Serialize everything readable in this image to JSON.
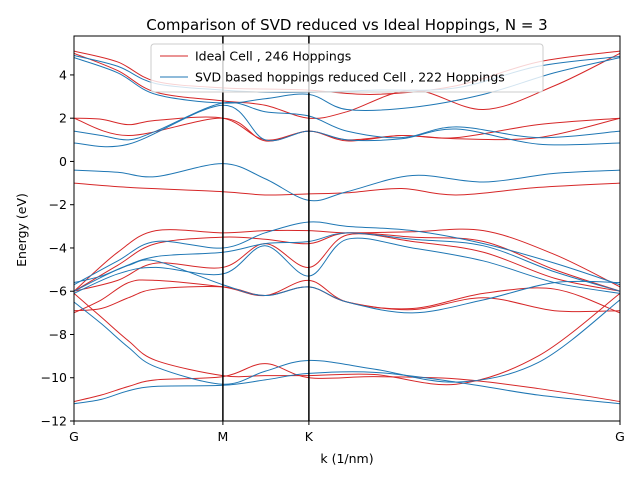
{
  "chart_data": {
    "type": "line",
    "title": "Comparison of SVD reduced vs Ideal Hoppings, N = 3",
    "xlabel": "k (1/nm)",
    "ylabel": "Energy (eV)",
    "xlim": [
      0,
      1
    ],
    "ylim": [
      -12,
      5.8
    ],
    "x_ticks": [
      {
        "x": 0.0,
        "label": "G"
      },
      {
        "x": 0.2727,
        "label": "M"
      },
      {
        "x": 0.4302,
        "label": "K"
      },
      {
        "x": 1.0,
        "label": "G"
      }
    ],
    "y_ticks": [
      -12,
      -10,
      -8,
      -6,
      -4,
      -2,
      0,
      2,
      4
    ],
    "high_symmetry_lines": [
      0.2727,
      0.4302
    ],
    "legend_position": "upper center",
    "series": [
      {
        "name": "Ideal Cell , 246 Hoppings",
        "color": "#d62728",
        "bands": [
          {
            "x": [
              0,
              0.08,
              0.15,
              0.2727,
              0.35,
              0.4302,
              0.55,
              0.7,
              0.85,
              1.0
            ],
            "y": [
              5.1,
              4.6,
              3.7,
              3.4,
              3.35,
              3.3,
              3.1,
              3.5,
              4.6,
              5.1
            ]
          },
          {
            "x": [
              0,
              0.08,
              0.15,
              0.2727,
              0.35,
              0.4302,
              0.5,
              0.62,
              0.75,
              0.88,
              1.0
            ],
            "y": [
              5.0,
              4.2,
              3.2,
              2.8,
              2.6,
              2.0,
              2.3,
              3.3,
              2.4,
              3.5,
              5.0
            ]
          },
          {
            "x": [
              0,
              0.05,
              0.1,
              0.15,
              0.2727,
              0.35,
              0.4302,
              0.5,
              0.6,
              0.7,
              0.85,
              1.0
            ],
            "y": [
              2.0,
              1.95,
              1.7,
              1.9,
              2.0,
              1.0,
              1.4,
              1.0,
              1.2,
              1.1,
              1.7,
              2.0
            ]
          },
          {
            "x": [
              0,
              0.1,
              0.2727,
              0.35,
              0.4302,
              0.5,
              0.6,
              0.7,
              0.85,
              1.0
            ],
            "y": [
              2.0,
              1.2,
              2.0,
              0.95,
              1.4,
              0.95,
              1.2,
              1.05,
              1.1,
              2.0
            ]
          },
          {
            "x": [
              0,
              0.1,
              0.2727,
              0.35,
              0.4302,
              0.5,
              0.6,
              0.7,
              0.85,
              1.0
            ],
            "y": [
              -1.0,
              -1.2,
              -1.4,
              -1.55,
              -1.5,
              -1.45,
              -1.25,
              -1.55,
              -1.2,
              -1.0
            ]
          },
          {
            "x": [
              0,
              0.08,
              0.15,
              0.2727,
              0.35,
              0.4302,
              0.5,
              0.62,
              0.75,
              0.88,
              1.0
            ],
            "y": [
              -6.0,
              -4.2,
              -3.2,
              -3.3,
              -3.2,
              -3.2,
              -3.3,
              -3.25,
              -3.2,
              -4.3,
              -5.8
            ]
          },
          {
            "x": [
              0,
              0.08,
              0.15,
              0.2727,
              0.35,
              0.4302,
              0.5,
              0.62,
              0.75,
              0.88,
              1.0
            ],
            "y": [
              -6.0,
              -4.8,
              -3.8,
              -3.5,
              -3.6,
              -3.8,
              -3.3,
              -3.5,
              -3.7,
              -5.0,
              -6.0
            ]
          },
          {
            "x": [
              0,
              0.08,
              0.15,
              0.2727,
              0.35,
              0.4302,
              0.5,
              0.62,
              0.75,
              0.88,
              1.0
            ],
            "y": [
              -6.0,
              -5.5,
              -4.7,
              -4.9,
              -3.8,
              -4.9,
              -3.4,
              -3.7,
              -4.2,
              -5.4,
              -6.0
            ]
          },
          {
            "x": [
              0,
              0.05,
              0.1,
              0.15,
              0.2727,
              0.35,
              0.4302,
              0.5,
              0.62,
              0.75,
              0.88,
              1.0
            ],
            "y": [
              -7.0,
              -6.4,
              -5.6,
              -5.5,
              -5.8,
              -6.2,
              -5.5,
              -6.5,
              -6.8,
              -6.1,
              -5.9,
              -7.0
            ]
          },
          {
            "x": [
              0,
              0.05,
              0.1,
              0.15,
              0.2727,
              0.35,
              0.4302,
              0.5,
              0.62,
              0.75,
              0.88,
              1.0
            ],
            "y": [
              -6.9,
              -6.8,
              -6.3,
              -5.9,
              -5.8,
              -6.2,
              -5.8,
              -6.5,
              -6.85,
              -6.3,
              -6.9,
              -6.9
            ]
          },
          {
            "x": [
              0,
              0.05,
              0.1,
              0.15,
              0.2727,
              0.35,
              0.4302,
              0.55,
              0.7,
              0.85,
              1.0
            ],
            "y": [
              -6.1,
              -7.2,
              -8.3,
              -9.2,
              -9.9,
              -9.9,
              -9.9,
              -9.85,
              -10.3,
              -9.0,
              -6.1
            ]
          },
          {
            "x": [
              0,
              0.05,
              0.1,
              0.15,
              0.2727,
              0.35,
              0.4302,
              0.55,
              0.7,
              0.85,
              1.0
            ],
            "y": [
              -11.1,
              -10.8,
              -10.4,
              -10.1,
              -9.95,
              -9.35,
              -10.0,
              -9.95,
              -10.05,
              -10.5,
              -11.1
            ]
          }
        ]
      },
      {
        "name": "SVD based hoppings reduced Cell , 222 Hoppings",
        "color": "#1f77b4",
        "bands": [
          {
            "x": [
              0,
              0.08,
              0.15,
              0.2727,
              0.35,
              0.4302,
              0.55,
              0.7,
              0.85,
              1.0
            ],
            "y": [
              4.9,
              4.4,
              3.6,
              3.3,
              3.2,
              3.2,
              3.3,
              3.4,
              4.4,
              4.85
            ]
          },
          {
            "x": [
              0,
              0.08,
              0.15,
              0.2727,
              0.35,
              0.4302,
              0.5,
              0.62,
              0.75,
              0.88,
              1.0
            ],
            "y": [
              4.8,
              4.1,
              3.1,
              2.7,
              2.9,
              3.1,
              2.4,
              2.5,
              3.1,
              4.1,
              4.8
            ]
          },
          {
            "x": [
              0,
              0.05,
              0.1,
              0.15,
              0.2727,
              0.35,
              0.4302,
              0.5,
              0.6,
              0.7,
              0.85,
              1.0
            ],
            "y": [
              1.4,
              1.2,
              1.0,
              1.4,
              2.7,
              2.3,
              2.1,
              1.4,
              1.1,
              1.6,
              1.1,
              1.4
            ]
          },
          {
            "x": [
              0,
              0.1,
              0.2727,
              0.35,
              0.4302,
              0.5,
              0.6,
              0.7,
              0.85,
              1.0
            ],
            "y": [
              0.85,
              0.8,
              2.6,
              1.0,
              1.4,
              1.0,
              1.05,
              1.5,
              0.8,
              0.85
            ]
          },
          {
            "x": [
              0,
              0.08,
              0.15,
              0.2727,
              0.35,
              0.4302,
              0.5,
              0.62,
              0.75,
              0.88,
              1.0
            ],
            "y": [
              -0.4,
              -0.5,
              -0.7,
              -0.1,
              -0.8,
              -1.8,
              -1.4,
              -0.65,
              -0.95,
              -0.55,
              -0.4
            ]
          },
          {
            "x": [
              0,
              0.08,
              0.15,
              0.2727,
              0.35,
              0.4302,
              0.5,
              0.62,
              0.75,
              0.88,
              1.0
            ],
            "y": [
              -5.7,
              -4.6,
              -3.7,
              -4.0,
              -3.3,
              -2.8,
              -3.0,
              -3.2,
              -3.8,
              -4.7,
              -5.7
            ]
          },
          {
            "x": [
              0,
              0.08,
              0.15,
              0.2727,
              0.35,
              0.4302,
              0.5,
              0.62,
              0.75,
              0.88,
              1.0
            ],
            "y": [
              -6.0,
              -5.0,
              -4.4,
              -4.2,
              -3.8,
              -3.7,
              -3.3,
              -3.6,
              -3.9,
              -5.1,
              -6.0
            ]
          },
          {
            "x": [
              0,
              0.08,
              0.15,
              0.2727,
              0.35,
              0.4302,
              0.5,
              0.62,
              0.75,
              0.88,
              1.0
            ],
            "y": [
              -6.1,
              -5.2,
              -4.9,
              -5.2,
              -3.9,
              -5.3,
              -3.6,
              -4.0,
              -4.6,
              -5.6,
              -6.1
            ]
          },
          {
            "x": [
              0,
              0.05,
              0.1,
              0.15,
              0.2727,
              0.35,
              0.4302,
              0.5,
              0.62,
              0.75,
              0.88,
              1.0
            ],
            "y": [
              -5.6,
              -5.3,
              -4.8,
              -4.6,
              -5.7,
              -6.2,
              -5.8,
              -6.5,
              -7.0,
              -6.4,
              -5.6,
              -5.6
            ]
          },
          {
            "x": [
              0,
              0.05,
              0.1,
              0.15,
              0.2727,
              0.35,
              0.4302,
              0.55,
              0.7,
              0.85,
              1.0
            ],
            "y": [
              -6.5,
              -7.5,
              -8.6,
              -9.5,
              -10.3,
              -9.7,
              -9.2,
              -9.6,
              -10.2,
              -9.3,
              -6.4
            ]
          },
          {
            "x": [
              0,
              0.05,
              0.1,
              0.15,
              0.2727,
              0.35,
              0.4302,
              0.55,
              0.7,
              0.85,
              1.0
            ],
            "y": [
              -11.2,
              -11.0,
              -10.6,
              -10.4,
              -10.35,
              -10.1,
              -9.8,
              -9.75,
              -10.2,
              -10.8,
              -11.2
            ]
          }
        ]
      }
    ]
  }
}
